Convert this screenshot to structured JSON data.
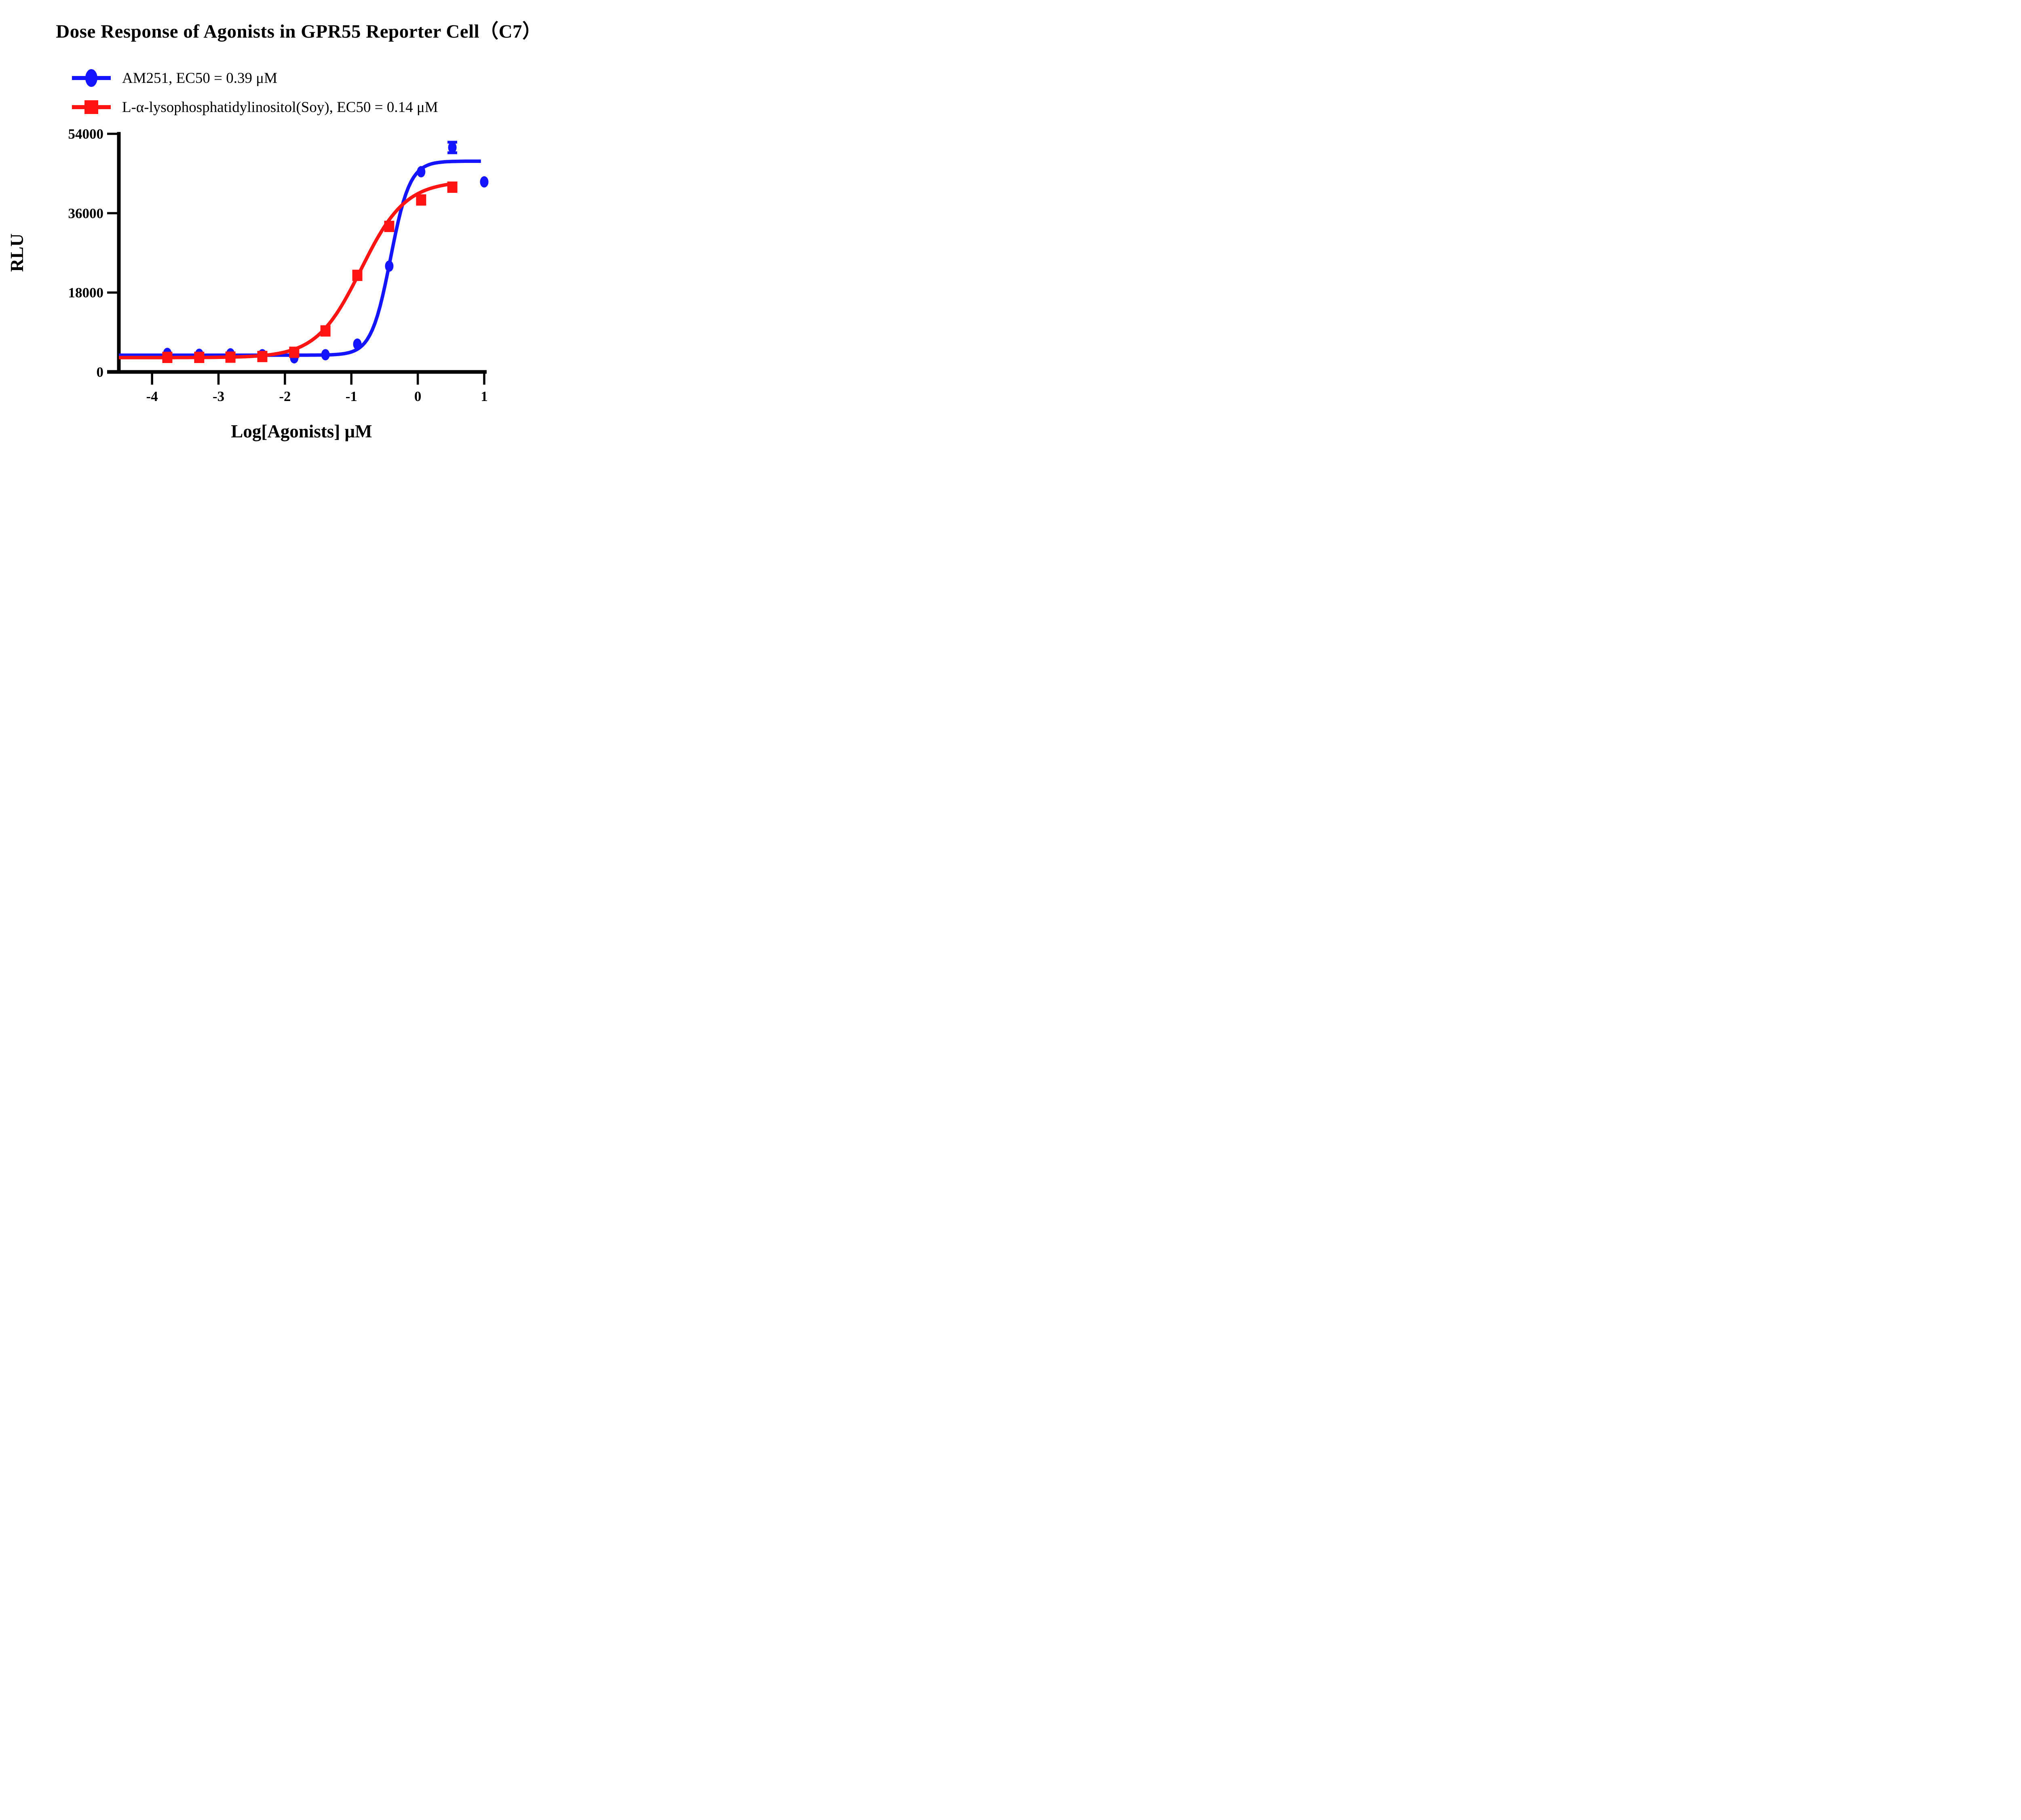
{
  "title": "Dose Response of Agonists in GPR55 Reporter Cell（C7）",
  "legend": [
    {
      "label": "AM251, EC50 = 0.39 μM",
      "color": "#1414ff",
      "marker": "circle"
    },
    {
      "label": "L-α-lysophosphatidylinositol(Soy), EC50 = 0.14 μM",
      "color": "#ff1414",
      "marker": "square"
    }
  ],
  "chart_data": {
    "type": "scatter",
    "subtype": "dose-response-curves",
    "title": "Dose Response of Agonists in GPR55 Reporter Cell（C7）",
    "xlabel": "Log[Agonists] μM",
    "ylabel": "RLU",
    "xlim": [
      -4.5,
      1.0
    ],
    "ylim": [
      0,
      54000
    ],
    "x_ticks": [
      -4,
      -3,
      -2,
      -1,
      0,
      1
    ],
    "y_ticks": [
      0,
      18000,
      36000,
      54000
    ],
    "grid": "off",
    "legend_position": "top-left above plot",
    "axis_color": "#000000",
    "series": [
      {
        "name": "AM251",
        "EC50_label": "EC50 = 0.39 μM",
        "color": "#1414ff",
        "marker": "circle",
        "x": [
          -3.77,
          -3.29,
          -2.82,
          -2.34,
          -1.86,
          -1.39,
          -0.91,
          -0.43,
          0.05,
          0.52,
          1.0
        ],
        "y": [
          4200,
          4000,
          4100,
          3900,
          3200,
          3900,
          6300,
          24000,
          45400,
          50900,
          43100
        ],
        "error_bars": [
          {
            "x": 0.52,
            "y": 50900,
            "err": 1200
          }
        ],
        "fit": {
          "model": "4PL",
          "bottom": 3800,
          "top": 47800,
          "logEC50": -0.41,
          "hill": 3.0,
          "x_start": -4.5,
          "x_end": 0.95
        }
      },
      {
        "name": "L-α-lysophosphatidylinositol(Soy)",
        "EC50_label": "EC50 = 0.14 μM",
        "color": "#ff1414",
        "marker": "square",
        "x": [
          -3.77,
          -3.29,
          -2.82,
          -2.34,
          -1.86,
          -1.39,
          -0.91,
          -0.43,
          0.05,
          0.52
        ],
        "y": [
          3300,
          3300,
          3350,
          3500,
          4450,
          9300,
          21900,
          33000,
          39000,
          41900
        ],
        "error_bars": [],
        "fit": {
          "model": "4PL",
          "bottom": 3250,
          "top": 43300,
          "logEC50": -0.854,
          "hill": 1.3,
          "x_start": -4.5,
          "x_end": 0.54
        }
      }
    ]
  }
}
